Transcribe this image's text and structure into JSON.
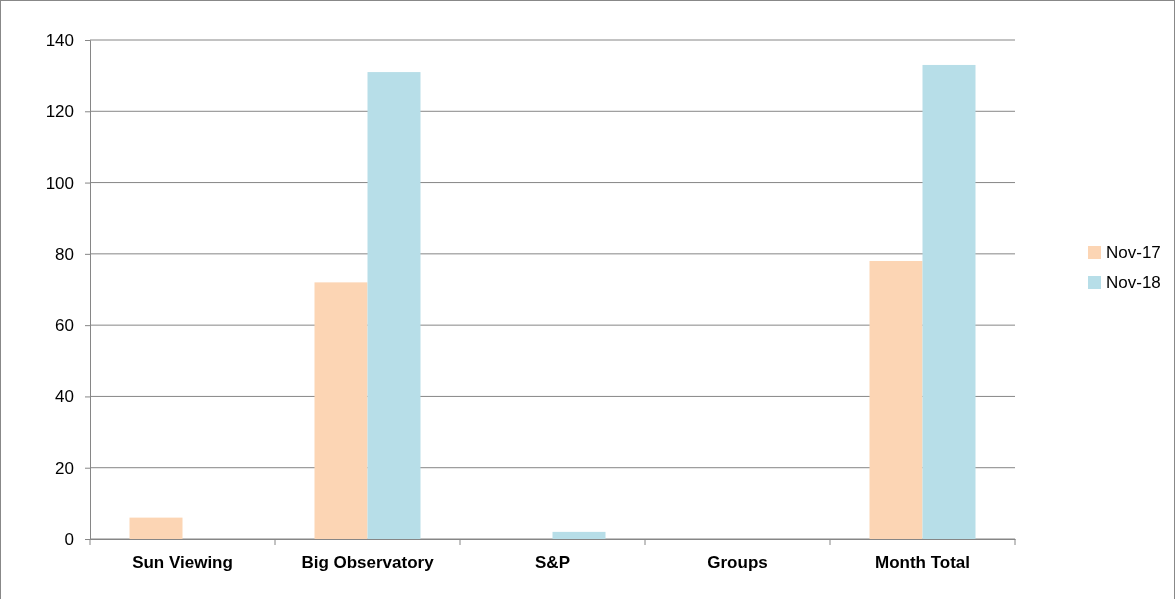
{
  "chart_data": {
    "type": "bar",
    "categories": [
      "Sun Viewing",
      "Big Observatory",
      "S&P",
      "Groups",
      "Month Total"
    ],
    "series": [
      {
        "name": "Nov-17",
        "color": "#fcd5b4",
        "values": [
          6,
          72,
          0,
          0,
          78
        ]
      },
      {
        "name": "Nov-18",
        "color": "#b7dee8",
        "values": [
          0,
          131,
          2,
          0,
          133
        ]
      }
    ],
    "ylim": [
      0,
      140
    ],
    "yticks": [
      0,
      20,
      40,
      60,
      80,
      100,
      120,
      140
    ],
    "grid": "y",
    "legend": "right"
  }
}
